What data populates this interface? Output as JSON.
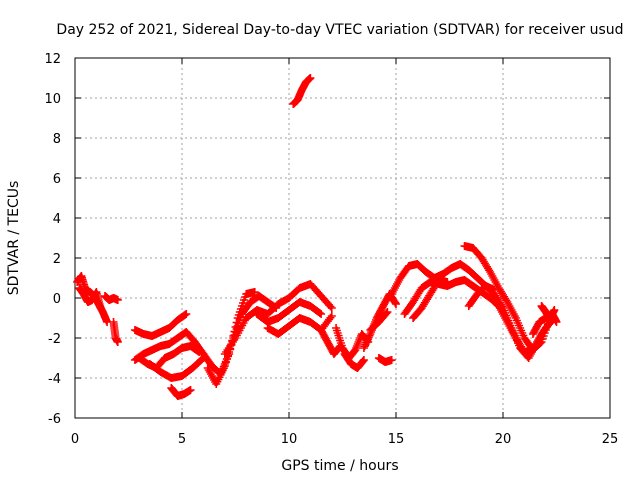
{
  "chart_data": {
    "type": "scatter",
    "title": "Day 252 of 2021, Sidereal Day-to-day VTEC variation (SDTVAR) for receiver usud",
    "xlabel": "GPS time / hours",
    "ylabel": "SDTVAR / TECUs",
    "xlim": [
      0,
      25
    ],
    "ylim": [
      -6,
      12
    ],
    "xticks": [
      0,
      5,
      10,
      15,
      20,
      25
    ],
    "yticks": [
      -6,
      -4,
      -2,
      0,
      2,
      4,
      6,
      8,
      10,
      12
    ],
    "grid": true,
    "marker": "+",
    "series": [
      {
        "name": "SDTVAR",
        "color": "#ff0000",
        "segments": [
          {
            "x": [
              0.1,
              0.3,
              0.5,
              0.7,
              0.9,
              1.1,
              1.3,
              1.5
            ],
            "y": [
              0.8,
              1.1,
              0.4,
              0.3,
              0.1,
              -0.3,
              -0.7,
              -1.2
            ]
          },
          {
            "x": [
              0.2,
              0.4,
              0.6,
              0.8,
              1.0,
              1.2
            ],
            "y": [
              0.5,
              0.2,
              -0.2,
              -0.1,
              0.3,
              -0.5
            ]
          },
          {
            "x": [
              1.4,
              1.6,
              1.8,
              2.0
            ],
            "y": [
              0.1,
              -0.1,
              0.0,
              -0.1
            ]
          },
          {
            "x": [
              1.8,
              1.9,
              2.0
            ],
            "y": [
              -1.2,
              -2.0,
              -2.2
            ]
          },
          {
            "x": [
              2.8,
              3.2,
              3.6,
              4.0,
              4.4,
              4.8,
              5.2
            ],
            "y": [
              -1.6,
              -1.8,
              -1.9,
              -1.7,
              -1.5,
              -1.1,
              -0.8
            ]
          },
          {
            "x": [
              2.8,
              3.2,
              3.6,
              4.0,
              4.4,
              4.8,
              5.2,
              5.6,
              6.0
            ],
            "y": [
              -3.1,
              -2.8,
              -2.6,
              -2.4,
              -2.3,
              -2.0,
              -1.7,
              -2.2,
              -2.8
            ]
          },
          {
            "x": [
              3.0,
              3.4,
              3.8,
              4.2,
              4.6,
              5.0,
              5.4,
              5.8
            ],
            "y": [
              -3.0,
              -3.3,
              -3.5,
              -3.0,
              -2.8,
              -2.5,
              -2.4,
              -2.7
            ]
          },
          {
            "x": [
              3.5,
              4.0,
              4.5,
              5.0,
              5.5,
              6.0
            ],
            "y": [
              -3.3,
              -3.7,
              -4.0,
              -3.9,
              -3.5,
              -3.0
            ]
          },
          {
            "x": [
              4.5,
              4.8,
              5.1,
              5.4
            ],
            "y": [
              -4.5,
              -4.9,
              -4.8,
              -4.6
            ]
          },
          {
            "x": [
              6.0,
              6.4,
              6.8,
              7.2,
              7.6,
              8.0,
              8.4
            ],
            "y": [
              -2.8,
              -3.4,
              -3.8,
              -2.8,
              -1.0,
              0.2,
              0.3
            ]
          },
          {
            "x": [
              6.2,
              6.6,
              7.0,
              7.4,
              7.8,
              8.2,
              8.6,
              9.0,
              9.4
            ],
            "y": [
              -3.5,
              -4.3,
              -3.4,
              -2.0,
              -0.8,
              -0.2,
              0.1,
              -0.2,
              -0.5
            ]
          },
          {
            "x": [
              7.0,
              7.5,
              8.0,
              8.5,
              9.0,
              9.5,
              10.0,
              10.5,
              11.0,
              11.5,
              12.0
            ],
            "y": [
              -2.8,
              -2.0,
              -1.0,
              -0.6,
              -0.8,
              -0.3,
              0.0,
              0.5,
              0.7,
              0.1,
              -0.5
            ]
          },
          {
            "x": [
              8.5,
              9.0,
              9.5,
              10.0,
              10.5,
              11.0,
              11.5
            ],
            "y": [
              -0.8,
              -1.2,
              -1.0,
              -0.6,
              -0.2,
              -0.4,
              -0.8
            ]
          },
          {
            "x": [
              9.0,
              9.5,
              10.0,
              10.5,
              11.0,
              11.5,
              12.0
            ],
            "y": [
              -1.5,
              -1.8,
              -1.4,
              -1.0,
              -1.2,
              -1.6,
              -0.9
            ]
          },
          {
            "x": [
              10.2,
              10.4,
              10.6,
              10.8,
              11.0
            ],
            "y": [
              9.7,
              9.9,
              10.4,
              10.8,
              11.0
            ]
          },
          {
            "x": [
              11.5,
              11.8,
              12.1,
              12.4
            ],
            "y": [
              -1.6,
              -2.2,
              -2.8,
              -2.4
            ]
          },
          {
            "x": [
              12.2,
              12.5,
              12.8,
              13.1,
              13.4,
              13.7
            ],
            "y": [
              -1.5,
              -2.5,
              -3.0,
              -2.6,
              -1.8,
              -2.2
            ]
          },
          {
            "x": [
              12.6,
              12.9,
              13.2,
              13.5
            ],
            "y": [
              -2.8,
              -3.3,
              -3.5,
              -3.1
            ]
          },
          {
            "x": [
              13.5,
              13.8,
              14.1,
              14.4,
              14.7,
              15.0
            ],
            "y": [
              -2.5,
              -1.8,
              -1.0,
              -0.4,
              0.2,
              -0.3
            ]
          },
          {
            "x": [
              13.8,
              14.2,
              14.6
            ],
            "y": [
              -1.6,
              -1.2,
              -0.7
            ]
          },
          {
            "x": [
              14.2,
              14.5,
              14.8
            ],
            "y": [
              -3.0,
              -3.2,
              -3.1
            ]
          },
          {
            "x": [
              14.8,
              15.2,
              15.6,
              16.0,
              16.4,
              16.8,
              17.2,
              17.6,
              18.0,
              18.4,
              18.8,
              19.2,
              19.6,
              20.0,
              20.4,
              20.8,
              21.2,
              21.6,
              22.0,
              22.4
            ],
            "y": [
              0.2,
              1.0,
              1.6,
              1.7,
              1.3,
              1.0,
              1.2,
              1.5,
              1.7,
              1.4,
              1.0,
              0.6,
              0.2,
              -0.5,
              -1.5,
              -2.5,
              -3.0,
              -2.2,
              -1.5,
              -1.0
            ]
          },
          {
            "x": [
              15.4,
              15.8,
              16.2,
              16.6,
              17.0,
              17.4,
              17.8,
              18.2,
              18.6,
              19.0,
              19.4,
              19.8,
              20.2,
              20.6,
              21.0,
              21.4,
              21.8,
              22.2
            ],
            "y": [
              -0.8,
              -0.2,
              0.5,
              0.8,
              0.7,
              0.6,
              0.8,
              0.9,
              0.6,
              0.3,
              0.0,
              -0.4,
              -1.2,
              -2.0,
              -2.7,
              -2.6,
              -1.8,
              -1.2
            ]
          },
          {
            "x": [
              15.8,
              16.2,
              16.6,
              17.0,
              17.4
            ],
            "y": [
              -1.0,
              -0.5,
              0.2,
              0.9,
              0.8
            ]
          },
          {
            "x": [
              18.2,
              18.6,
              19.0,
              19.4,
              19.8,
              20.2,
              20.6,
              21.0,
              21.4,
              21.8,
              22.2,
              22.4
            ],
            "y": [
              2.6,
              2.5,
              2.0,
              1.3,
              0.5,
              -0.2,
              -1.0,
              -2.0,
              -2.6,
              -2.2,
              -1.0,
              -0.6
            ]
          },
          {
            "x": [
              18.4,
              18.8,
              19.2,
              19.6
            ],
            "y": [
              -0.4,
              0.2,
              0.6,
              0.4
            ]
          },
          {
            "x": [
              21.4,
              21.7,
              22.0,
              22.3,
              22.5
            ],
            "y": [
              -1.8,
              -1.2,
              -1.0,
              -0.8,
              -1.2
            ]
          },
          {
            "x": [
              21.8,
              22.0,
              22.2
            ],
            "y": [
              -0.4,
              -0.7,
              -1.1
            ]
          }
        ]
      }
    ]
  }
}
